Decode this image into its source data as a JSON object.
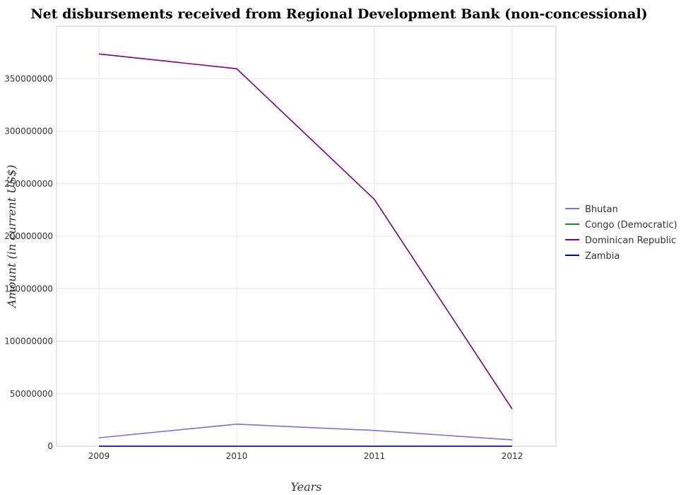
{
  "chart_data": {
    "type": "line",
    "title": "Net disbursements received from Regional Development Bank (non-concessional)",
    "xlabel": "Years",
    "ylabel": "Amount (in current US$)",
    "x": [
      "2009",
      "2010",
      "2011",
      "2012"
    ],
    "ylim": [
      0,
      400000000
    ],
    "yticks": [
      0,
      50000000,
      100000000,
      150000000,
      200000000,
      250000000,
      300000000,
      350000000
    ],
    "ytick_labels": [
      "0",
      "50000000",
      "100000000",
      "150000000",
      "200000000",
      "250000000",
      "300000000",
      "350000000"
    ],
    "grid": true,
    "legend_position": "right",
    "series": [
      {
        "name": "Bhutan",
        "color": "#7777cc",
        "values": [
          8000000,
          21000000,
          15000000,
          6000000
        ]
      },
      {
        "name": "Congo (Democratic)",
        "color": "#228b22",
        "values": [
          0,
          0,
          0,
          0
        ]
      },
      {
        "name": "Dominican Republic",
        "color": "#800080",
        "values": [
          373500000,
          359500000,
          235000000,
          35500000
        ]
      },
      {
        "name": "Zambia",
        "color": "#0000cd",
        "values": [
          0,
          0,
          0,
          0
        ]
      }
    ]
  }
}
